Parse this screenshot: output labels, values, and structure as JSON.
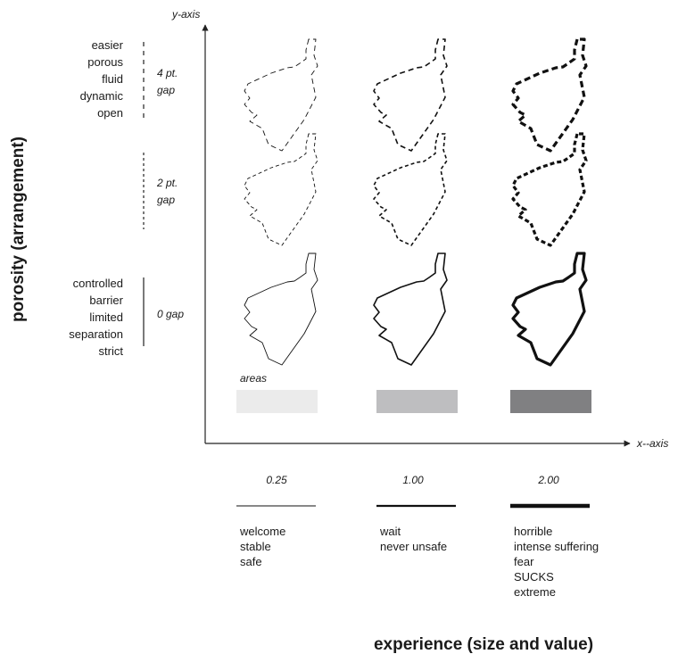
{
  "axes": {
    "y_label": "y-axis",
    "x_label": "x--axis",
    "y_title": "porosity (arrangement)",
    "x_title": "experience (size and value)"
  },
  "rows": [
    {
      "gap_label": [
        "4 pt.",
        "gap"
      ],
      "descriptors": [
        "easier",
        "porous",
        "fluid",
        "dynamic",
        "open"
      ],
      "line_style": "dashed-wide"
    },
    {
      "gap_label": [
        "2 pt.",
        "gap"
      ],
      "descriptors": [],
      "line_style": "dashed-tight"
    },
    {
      "gap_label": [
        "0 gap"
      ],
      "descriptors": [
        "controlled",
        "barrier",
        "limited",
        "separation",
        "strict"
      ],
      "line_style": "solid"
    }
  ],
  "areas": {
    "label": "areas",
    "swatches": [
      {
        "color": "#ebebeb"
      },
      {
        "color": "#bebec0"
      },
      {
        "color": "#808082"
      }
    ]
  },
  "columns": [
    {
      "value": "0.25",
      "words": [
        "welcome",
        "stable",
        "safe"
      ]
    },
    {
      "value": "1.00",
      "words": [
        "wait",
        "never unsafe"
      ]
    },
    {
      "value": "2.00",
      "words": [
        "horrible",
        "intense suffering",
        "fear",
        "SUCKS",
        "extreme"
      ]
    }
  ]
}
